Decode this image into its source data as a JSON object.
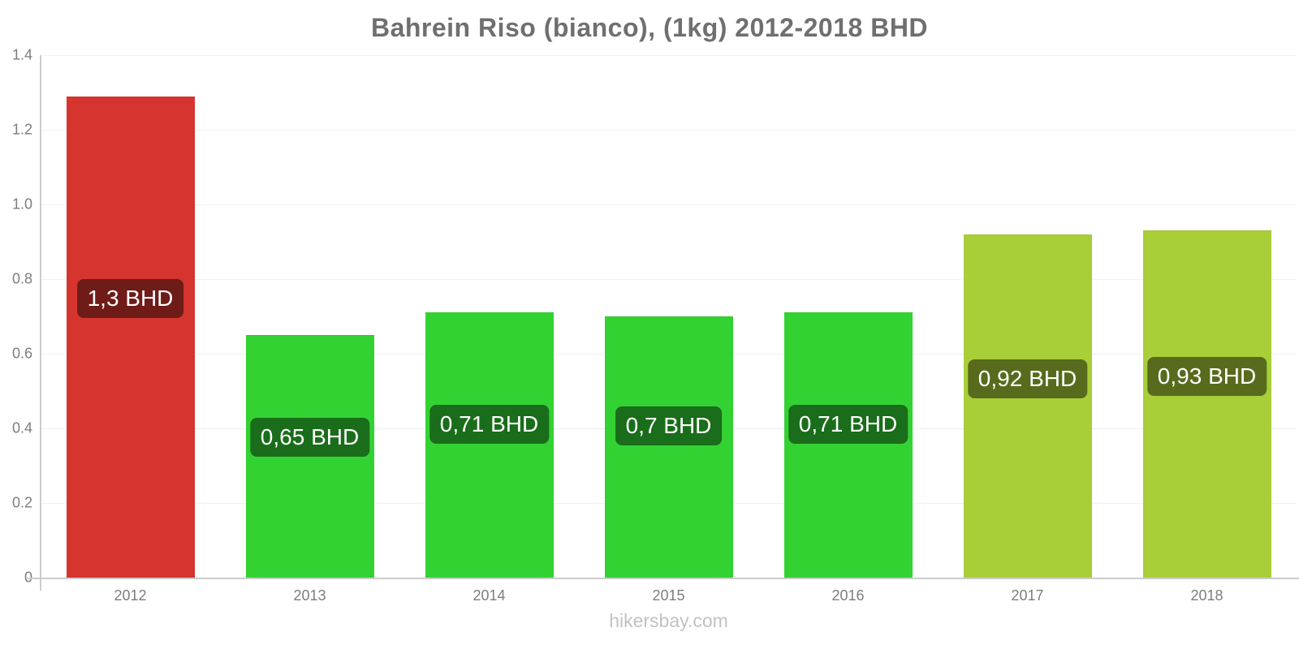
{
  "title": "Bahrein Riso (bianco), (1kg) 2012-2018 BHD",
  "footer": {
    "text": "hikersbay.com"
  },
  "chart_data": {
    "type": "bar",
    "title": "Bahrein Riso (bianco), (1kg) 2012-2018 BHD",
    "categories": [
      "2012",
      "2013",
      "2014",
      "2015",
      "2016",
      "2017",
      "2018"
    ],
    "values": [
      1.29,
      0.65,
      0.71,
      0.7,
      0.71,
      0.92,
      0.93
    ],
    "bar_labels": [
      "1,3 BHD",
      "0,65 BHD",
      "0,71 BHD",
      "0,7 BHD",
      "0,71 BHD",
      "0,92 BHD",
      "0,93 BHD"
    ],
    "bar_colors": [
      "#d6352f",
      "#33d233",
      "#33d233",
      "#33d233",
      "#33d233",
      "#a8ce38",
      "#a8ce38"
    ],
    "label_bg_colors": [
      "#6f1b18",
      "#1a6d1a",
      "#1a6d1a",
      "#1a6d1a",
      "#1a6d1a",
      "#586b1d",
      "#586b1d"
    ],
    "xlabel": "",
    "ylabel": "",
    "ylim": [
      0,
      1.4
    ],
    "yticks": [
      "0",
      "0.2",
      "0.4",
      "0.6",
      "0.8",
      "1.0",
      "1.2",
      "1.4"
    ],
    "ytick_values": [
      0,
      0.2,
      0.4,
      0.6,
      0.8,
      1.0,
      1.2,
      1.4
    ],
    "grid": true,
    "legend": false,
    "axis_color": "#cccccc",
    "grid_color": "#f0f0f0",
    "tick_label_color": "#7d7d7d",
    "title_color": "#6f6f6f",
    "watermark_color": "#c2c2c2"
  }
}
